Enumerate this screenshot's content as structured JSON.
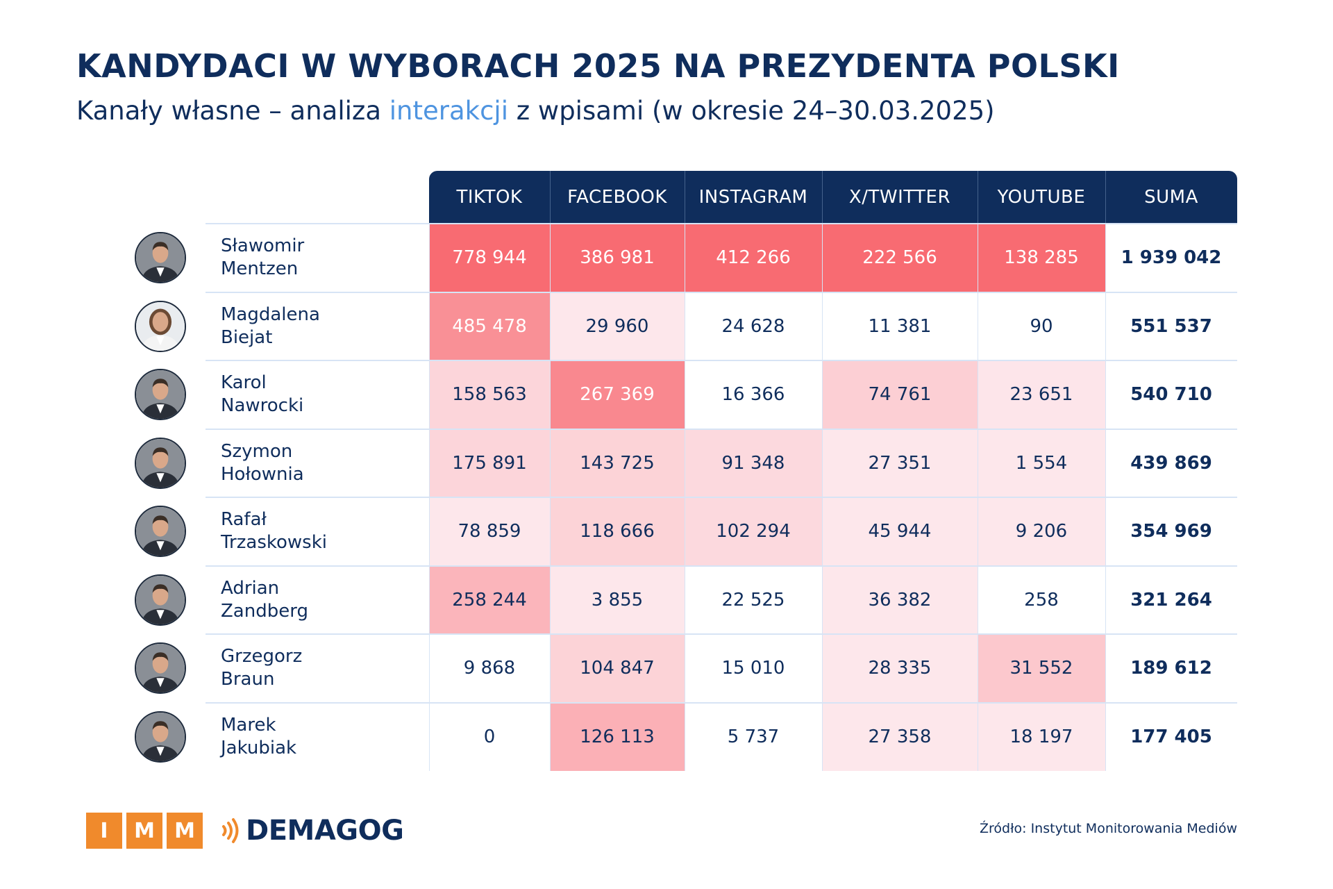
{
  "title": "KANDYDACI W WYBORACH 2025 NA PREZYDENTA POLSKI",
  "subtitle": {
    "before": "Kanały własne – analiza ",
    "highlight": "interakcji",
    "after": " z wpisami (w okresie 24–30.03.2025)"
  },
  "colors": {
    "navy": "#0f2d5c",
    "highlight_blue": "#4e94e0",
    "heat_max": "#f86b72",
    "heat_min": "#ffffff",
    "imm_orange": "#f08a2c"
  },
  "chart_data": {
    "type": "table",
    "columns": [
      "TIKTOK",
      "FACEBOOK",
      "INSTAGRAM",
      "X/TWITTER",
      "YOUTUBE",
      "SUMA"
    ],
    "rows": [
      {
        "first": "Sławomir",
        "last": "Mentzen",
        "values": [
          778944,
          386981,
          412266,
          222566,
          138285
        ],
        "display": [
          "778 944",
          "386 981",
          "412 266",
          "222 566",
          "138 285"
        ],
        "sum": "1 939 042",
        "heat": [
          1.0,
          1.0,
          1.0,
          1.0,
          1.0
        ],
        "avatar_icon": "portrait-man-icon"
      },
      {
        "first": "Magdalena",
        "last": "Biejat",
        "values": [
          485478,
          29960,
          24628,
          11381,
          90
        ],
        "display": [
          "485 478",
          "29 960",
          "24 628",
          "11 381",
          "90"
        ],
        "sum": "551 537",
        "heat": [
          0.72,
          0.07,
          0.0,
          0.0,
          0.0
        ],
        "avatar_icon": "portrait-woman-icon"
      },
      {
        "first": "Karol",
        "last": "Nawrocki",
        "values": [
          158563,
          267369,
          16366,
          74761,
          23651
        ],
        "display": [
          "158 563",
          "267 369",
          "16 366",
          "74 761",
          "23 651"
        ],
        "sum": "540 710",
        "heat": [
          0.2,
          0.78,
          0.0,
          0.25,
          0.08
        ],
        "avatar_icon": "portrait-man-icon"
      },
      {
        "first": "Szymon",
        "last": "Hołownia",
        "values": [
          175891,
          143725,
          91348,
          27351,
          1554
        ],
        "display": [
          "175 891",
          "143 725",
          "91 348",
          "27 351",
          "1 554"
        ],
        "sum": "439 869",
        "heat": [
          0.2,
          0.22,
          0.17,
          0.07,
          0.07
        ],
        "avatar_icon": "portrait-man-icon"
      },
      {
        "first": "Rafał",
        "last": "Trzaskowski",
        "values": [
          78859,
          118666,
          102294,
          45944,
          9206
        ],
        "display": [
          "78 859",
          "118 666",
          "102 294",
          "45 944",
          "9 206"
        ],
        "sum": "354 969",
        "heat": [
          0.07,
          0.22,
          0.17,
          0.07,
          0.07
        ],
        "avatar_icon": "portrait-man-icon"
      },
      {
        "first": "Adrian",
        "last": "Zandberg",
        "values": [
          258244,
          3855,
          22525,
          36382,
          258
        ],
        "display": [
          "258 244",
          "3 855",
          "22 525",
          "36 382",
          "258"
        ],
        "sum": "321 264",
        "heat": [
          0.44,
          0.07,
          0.0,
          0.07,
          0.0
        ],
        "avatar_icon": "portrait-man-icon"
      },
      {
        "first": "Grzegorz",
        "last": "Braun",
        "values": [
          9868,
          104847,
          15010,
          28335,
          31552
        ],
        "display": [
          "9 868",
          "104 847",
          "15 010",
          "28 335",
          "31 552"
        ],
        "sum": "189 612",
        "heat": [
          0.0,
          0.22,
          0.0,
          0.07,
          0.3
        ],
        "avatar_icon": "portrait-man-icon"
      },
      {
        "first": "Marek",
        "last": "Jakubiak",
        "values": [
          0,
          126113,
          5737,
          27358,
          18197
        ],
        "display": [
          "0",
          "126 113",
          "5 737",
          "27 358",
          "18 197"
        ],
        "sum": "177 405",
        "heat": [
          0.0,
          0.48,
          0.0,
          0.07,
          0.07
        ],
        "avatar_icon": "portrait-man-icon"
      }
    ]
  },
  "footer": {
    "imm_letters": [
      "I",
      "M",
      "M"
    ],
    "demagog": "DEMAGOG",
    "source": "Źródło: Instytut Monitorowania Mediów"
  }
}
